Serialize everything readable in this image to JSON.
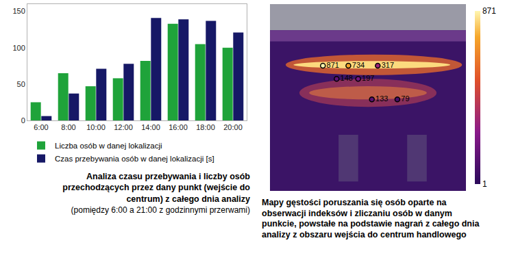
{
  "chart_data": [
    {
      "type": "bar",
      "title": "Analiza czasu przebywania i liczby osób przechodzących przez dany punkt (wejście do centrum) z całego dnia analizy",
      "subtitle": "(pomiędzy 6:00 a 21:00 z godzinnymi przerwami)",
      "categories": [
        "6:00",
        "8:00",
        "10:00",
        "12:00",
        "14:00",
        "16:00",
        "18:00",
        "20:00"
      ],
      "series": [
        {
          "name": "Liczba osób w danej lokalizacji",
          "color": "#1fa33a",
          "values": [
            25,
            65,
            47,
            58,
            82,
            133,
            105,
            100
          ]
        },
        {
          "name": "Czas przebywania osób w danej lokalizacji [s]",
          "color": "#161866",
          "values": [
            6,
            37,
            71,
            78,
            141,
            139,
            137,
            121
          ]
        }
      ],
      "ylim": [
        0,
        160
      ],
      "yticks": [
        0,
        50,
        100,
        150
      ],
      "grid": false,
      "legend": "bottom"
    },
    {
      "type": "density_map",
      "title": "Mapy gęstości poruszania się osób oparte na obserwacji indeksów i zliczaniu osób w danym punkcie, powstałe na podstawie nagrań z całego dnia analizy z obszaru wejścia do centrum handlowego",
      "values": [
        871,
        734,
        317,
        148,
        197,
        133,
        79
      ],
      "data_labels": true,
      "colorbar_range": [
        1,
        871
      ],
      "colorbar_ticks": [
        1,
        871
      ]
    }
  ]
}
